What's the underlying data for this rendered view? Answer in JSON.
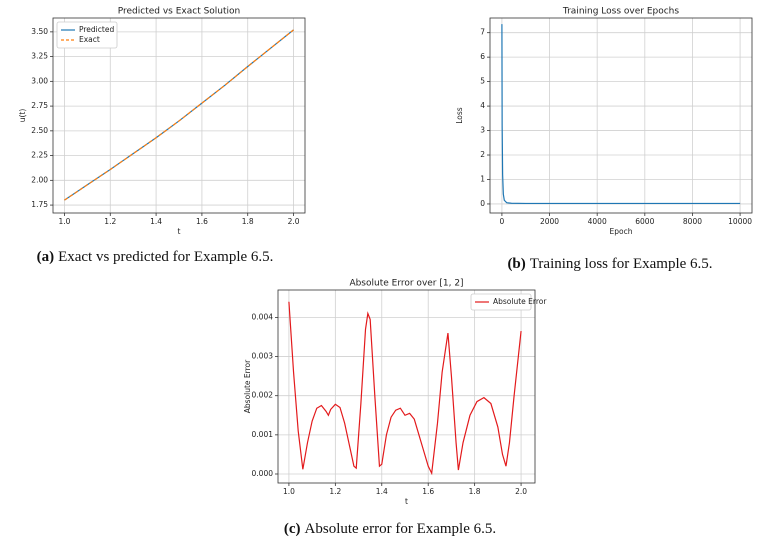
{
  "chart_data": [
    {
      "type": "line",
      "title": "Predicted vs Exact Solution",
      "xlabel": "t",
      "ylabel": "u(t)",
      "caption_label": "(a)",
      "caption": "Exact vs predicted for Example 6.5.",
      "x": [
        1.0,
        1.1,
        1.2,
        1.3,
        1.4,
        1.5,
        1.6,
        1.7,
        1.8,
        1.9,
        2.0
      ],
      "series": [
        {
          "name": "Predicted",
          "color": "#1f77b4",
          "linestyle": "solid",
          "values": [
            1.8,
            1.955,
            2.11,
            2.27,
            2.43,
            2.6,
            2.78,
            2.96,
            3.15,
            3.335,
            3.52
          ]
        },
        {
          "name": "Exact",
          "color": "#ff7f0e",
          "linestyle": "dashed",
          "values": [
            1.8,
            1.955,
            2.11,
            2.27,
            2.43,
            2.6,
            2.78,
            2.96,
            3.15,
            3.335,
            3.52
          ]
        }
      ],
      "xlim": [
        0.95,
        2.05
      ],
      "xticks": [
        {
          "value": 1,
          "label": "1.0"
        },
        1.2,
        1.4,
        1.6,
        1.8,
        {
          "value": 2,
          "label": "2.0"
        }
      ],
      "ylim": [
        1.67,
        3.64
      ],
      "yticks": [
        1.75,
        {
          "value": 2,
          "label": "2.00"
        },
        2.25,
        {
          "value": 2.5,
          "label": "2.50"
        },
        2.75,
        {
          "value": 3,
          "label": "3.00"
        },
        3.25,
        {
          "value": 3.5,
          "label": "3.50"
        }
      ],
      "grid": true,
      "legend": "upper left"
    },
    {
      "type": "line",
      "title": "Training Loss over Epochs",
      "xlabel": "Epoch",
      "ylabel": "Loss",
      "caption_label": "(b)",
      "caption": "Training loss for Example 6.5.",
      "x": [
        0,
        10,
        30,
        60,
        100,
        200,
        400,
        1000,
        2000,
        4000,
        6000,
        8000,
        10000
      ],
      "series": [
        {
          "name": "Loss",
          "color": "#1f77b4",
          "linestyle": "solid",
          "values": [
            7.35,
            3.2,
            1.2,
            0.4,
            0.15,
            0.05,
            0.03,
            0.02,
            0.02,
            0.02,
            0.02,
            0.02,
            0.02
          ]
        }
      ],
      "xlim": [
        -500,
        10500
      ],
      "xticks": [
        0,
        2000,
        4000,
        6000,
        8000,
        10000
      ],
      "ylim": [
        -0.37,
        7.6
      ],
      "yticks": [
        0,
        1,
        2,
        3,
        4,
        5,
        6,
        7
      ],
      "grid": true,
      "legend": "none"
    },
    {
      "type": "line",
      "title": "Absolute Error over [1, 2]",
      "xlabel": "t",
      "ylabel": "Absolute Error",
      "caption_label": "(c)",
      "caption": "Absolute error for Example 6.5.",
      "x": [
        1.0,
        1.02,
        1.04,
        1.06,
        1.08,
        1.1,
        1.12,
        1.14,
        1.16,
        1.17,
        1.18,
        1.2,
        1.22,
        1.24,
        1.26,
        1.28,
        1.29,
        1.31,
        1.33,
        1.34,
        1.35,
        1.37,
        1.39,
        1.4,
        1.42,
        1.44,
        1.46,
        1.48,
        1.5,
        1.52,
        1.54,
        1.56,
        1.58,
        1.6,
        1.615,
        1.64,
        1.66,
        1.685,
        1.7,
        1.72,
        1.73,
        1.75,
        1.78,
        1.81,
        1.84,
        1.87,
        1.9,
        1.92,
        1.935,
        1.95,
        1.97,
        1.99,
        2.0
      ],
      "series": [
        {
          "name": "Absolute Error",
          "color": "#e31a1c",
          "linestyle": "solid",
          "values": [
            0.0044,
            0.0026,
            0.0011,
            0.00012,
            0.0008,
            0.00135,
            0.00168,
            0.00175,
            0.0016,
            0.0015,
            0.00165,
            0.00178,
            0.0017,
            0.0013,
            0.00075,
            0.0002,
            0.00015,
            0.0018,
            0.0037,
            0.0041,
            0.00395,
            0.002,
            0.0002,
            0.00025,
            0.001,
            0.00145,
            0.00163,
            0.00168,
            0.0015,
            0.00155,
            0.0014,
            0.001,
            0.0006,
            0.0002,
            2e-05,
            0.0013,
            0.0026,
            0.0036,
            0.0025,
            0.0008,
            0.0001,
            0.0008,
            0.0015,
            0.00185,
            0.00195,
            0.0018,
            0.0012,
            0.0005,
            0.0002,
            0.0008,
            0.002,
            0.0031,
            0.00365
          ]
        }
      ],
      "xlim": [
        0.953,
        2.06
      ],
      "xticks": [
        {
          "value": 1,
          "label": "1.0"
        },
        1.2,
        1.4,
        1.6,
        1.8,
        {
          "value": 2,
          "label": "2.0"
        }
      ],
      "ylim": [
        -0.00023,
        0.0047
      ],
      "yticks": [
        {
          "value": 0,
          "label": "0.000"
        },
        {
          "value": 0.001,
          "label": "0.001"
        },
        {
          "value": 0.002,
          "label": "0.002"
        },
        {
          "value": 0.003,
          "label": "0.003"
        },
        {
          "value": 0.004,
          "label": "0.004"
        }
      ],
      "grid": true,
      "legend": "upper right"
    }
  ]
}
